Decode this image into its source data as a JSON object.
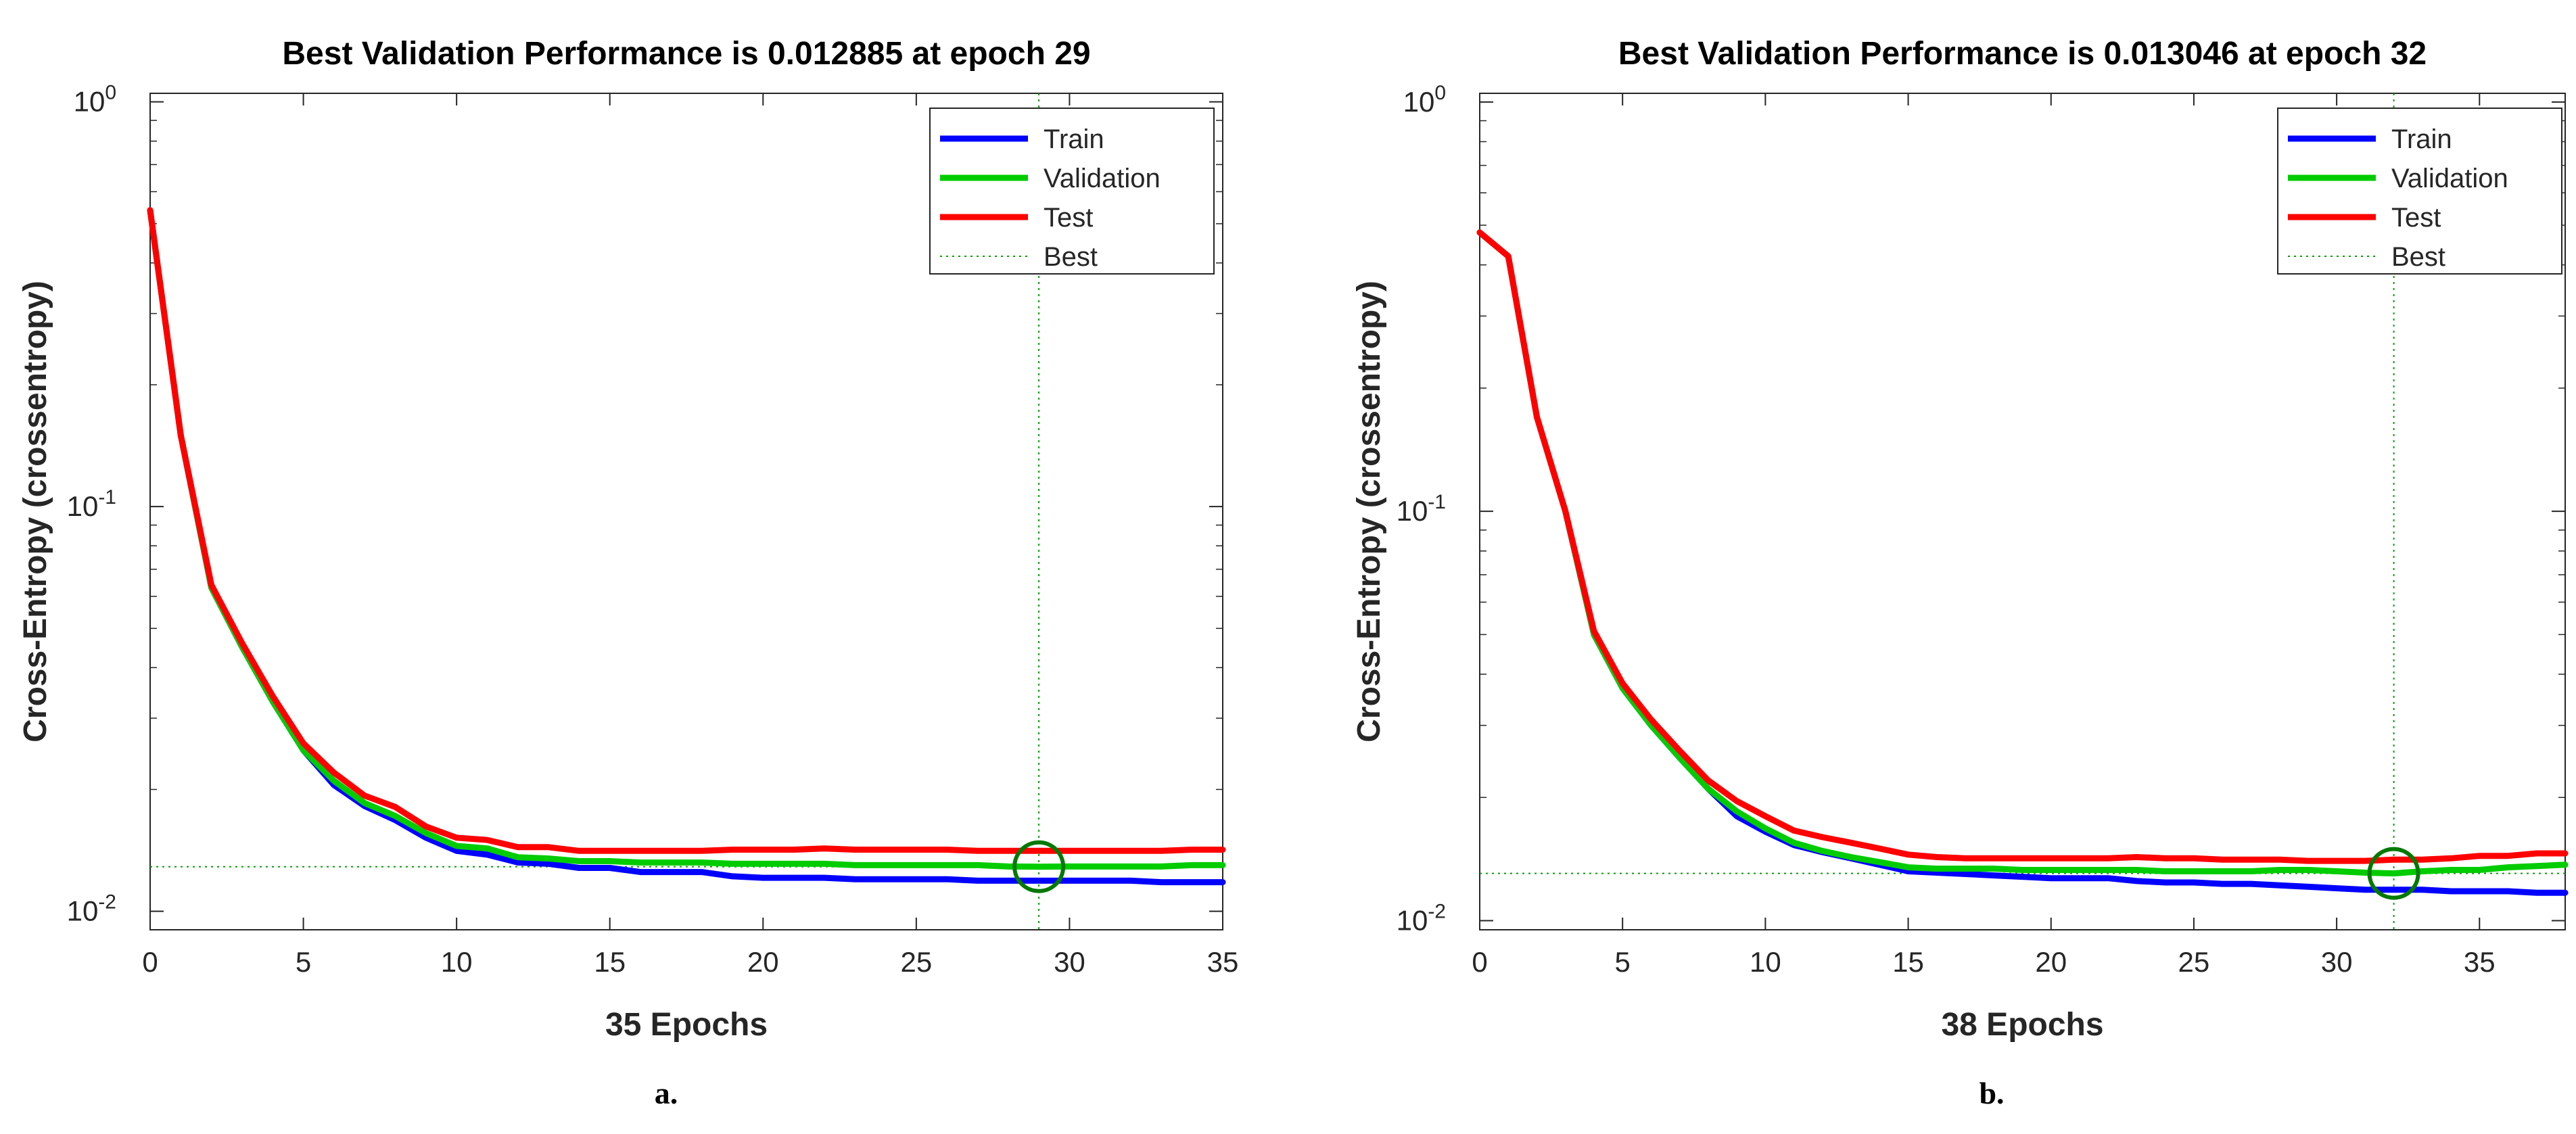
{
  "chart_data": [
    {
      "type": "line",
      "panel_label": "a.",
      "title": "Best Validation Performance is 0.012885 at epoch 29",
      "xlabel": "35 Epochs",
      "ylabel": "Cross-Entropy  (crossentropy)",
      "xscale": "linear",
      "yscale": "log",
      "xlim": [
        0,
        35
      ],
      "ylim": [
        0.009,
        1.05
      ],
      "xticks": [
        0,
        5,
        10,
        15,
        20,
        25,
        30,
        35
      ],
      "yticks": [
        {
          "value": 1,
          "base": "10",
          "exp": "0"
        },
        {
          "value": 0.1,
          "base": "10",
          "exp": "-1"
        },
        {
          "value": 0.01,
          "base": "10",
          "exp": "-2"
        }
      ],
      "legend_position": "top-right",
      "best": {
        "epoch": 29,
        "value": 0.012885,
        "label": "Best"
      },
      "x": [
        0,
        1,
        2,
        3,
        4,
        5,
        6,
        7,
        8,
        9,
        10,
        11,
        12,
        13,
        14,
        15,
        16,
        17,
        18,
        19,
        20,
        21,
        22,
        23,
        24,
        25,
        26,
        27,
        28,
        29,
        30,
        31,
        32,
        33,
        34,
        35
      ],
      "series": [
        {
          "name": "Train",
          "color": "#0000ff",
          "values": [
            0.54,
            0.15,
            0.063,
            0.045,
            0.033,
            0.025,
            0.0205,
            0.0182,
            0.0168,
            0.0152,
            0.0141,
            0.0138,
            0.0132,
            0.0131,
            0.0128,
            0.0128,
            0.0125,
            0.0125,
            0.0125,
            0.0122,
            0.0121,
            0.0121,
            0.0121,
            0.012,
            0.012,
            0.012,
            0.012,
            0.0119,
            0.0119,
            0.0119,
            0.0119,
            0.0119,
            0.0119,
            0.0118,
            0.0118,
            0.0118
          ]
        },
        {
          "name": "Validation",
          "color": "#00cc00",
          "values": [
            0.54,
            0.15,
            0.063,
            0.045,
            0.033,
            0.025,
            0.021,
            0.0185,
            0.0172,
            0.0156,
            0.0145,
            0.0143,
            0.0136,
            0.0135,
            0.0133,
            0.0133,
            0.0132,
            0.0132,
            0.0132,
            0.0131,
            0.0131,
            0.0131,
            0.0131,
            0.013,
            0.013,
            0.013,
            0.013,
            0.013,
            0.0129,
            0.012885,
            0.0129,
            0.0129,
            0.0129,
            0.0129,
            0.013,
            0.013
          ]
        },
        {
          "name": "Test",
          "color": "#ff0000",
          "values": [
            0.54,
            0.15,
            0.064,
            0.046,
            0.034,
            0.026,
            0.022,
            0.0193,
            0.0181,
            0.0162,
            0.0152,
            0.015,
            0.0144,
            0.0144,
            0.0141,
            0.0141,
            0.0141,
            0.0141,
            0.0141,
            0.0142,
            0.0142,
            0.0142,
            0.0143,
            0.0142,
            0.0142,
            0.0142,
            0.0142,
            0.0141,
            0.0141,
            0.0141,
            0.0141,
            0.0141,
            0.0141,
            0.0141,
            0.0142,
            0.0142
          ]
        }
      ]
    },
    {
      "type": "line",
      "panel_label": "b.",
      "title": "Best Validation Performance is 0.013046 at epoch 32",
      "xlabel": "38 Epochs",
      "ylabel": "Cross-Entropy  (crossentropy)",
      "xscale": "linear",
      "yscale": "log",
      "xlim": [
        0,
        38
      ],
      "ylim": [
        0.0095,
        1.05
      ],
      "xticks": [
        0,
        5,
        10,
        15,
        20,
        25,
        30,
        35
      ],
      "yticks": [
        {
          "value": 1,
          "base": "10",
          "exp": "0"
        },
        {
          "value": 0.1,
          "base": "10",
          "exp": "-1"
        },
        {
          "value": 0.01,
          "base": "10",
          "exp": "-2"
        }
      ],
      "legend_position": "top-right",
      "best": {
        "epoch": 32,
        "value": 0.013046,
        "label": "Best"
      },
      "x": [
        0,
        1,
        2,
        3,
        4,
        5,
        6,
        7,
        8,
        9,
        10,
        11,
        12,
        13,
        14,
        15,
        16,
        17,
        18,
        19,
        20,
        21,
        22,
        23,
        24,
        25,
        26,
        27,
        28,
        29,
        30,
        31,
        32,
        33,
        34,
        35,
        36,
        37,
        38
      ],
      "series": [
        {
          "name": "Train",
          "color": "#0000ff",
          "values": [
            0.48,
            0.42,
            0.17,
            0.1,
            0.05,
            0.037,
            0.03,
            0.025,
            0.021,
            0.018,
            0.0165,
            0.0153,
            0.0147,
            0.0142,
            0.0137,
            0.0132,
            0.0131,
            0.013,
            0.0129,
            0.0128,
            0.0127,
            0.0127,
            0.0127,
            0.0125,
            0.0124,
            0.0124,
            0.0123,
            0.0123,
            0.0122,
            0.0121,
            0.012,
            0.0119,
            0.0119,
            0.0119,
            0.0118,
            0.0118,
            0.0118,
            0.0117,
            0.0117
          ]
        },
        {
          "name": "Validation",
          "color": "#00cc00",
          "values": [
            0.48,
            0.42,
            0.17,
            0.1,
            0.05,
            0.037,
            0.03,
            0.025,
            0.021,
            0.0185,
            0.0168,
            0.0155,
            0.0148,
            0.0143,
            0.0139,
            0.0135,
            0.0134,
            0.0134,
            0.0134,
            0.0133,
            0.0133,
            0.0133,
            0.0133,
            0.0133,
            0.0132,
            0.0132,
            0.0132,
            0.0132,
            0.0133,
            0.0133,
            0.0132,
            0.0131,
            0.013046,
            0.0132,
            0.0133,
            0.0133,
            0.0135,
            0.0136,
            0.0137
          ]
        },
        {
          "name": "Test",
          "color": "#ff0000",
          "values": [
            0.48,
            0.42,
            0.17,
            0.1,
            0.051,
            0.038,
            0.031,
            0.026,
            0.022,
            0.0196,
            0.018,
            0.0166,
            0.016,
            0.0155,
            0.015,
            0.0145,
            0.0143,
            0.0142,
            0.0142,
            0.0142,
            0.0142,
            0.0142,
            0.0142,
            0.0143,
            0.0142,
            0.0142,
            0.0141,
            0.0141,
            0.0141,
            0.014,
            0.014,
            0.014,
            0.0141,
            0.0141,
            0.0142,
            0.0144,
            0.0144,
            0.0146,
            0.0146
          ]
        }
      ]
    }
  ]
}
